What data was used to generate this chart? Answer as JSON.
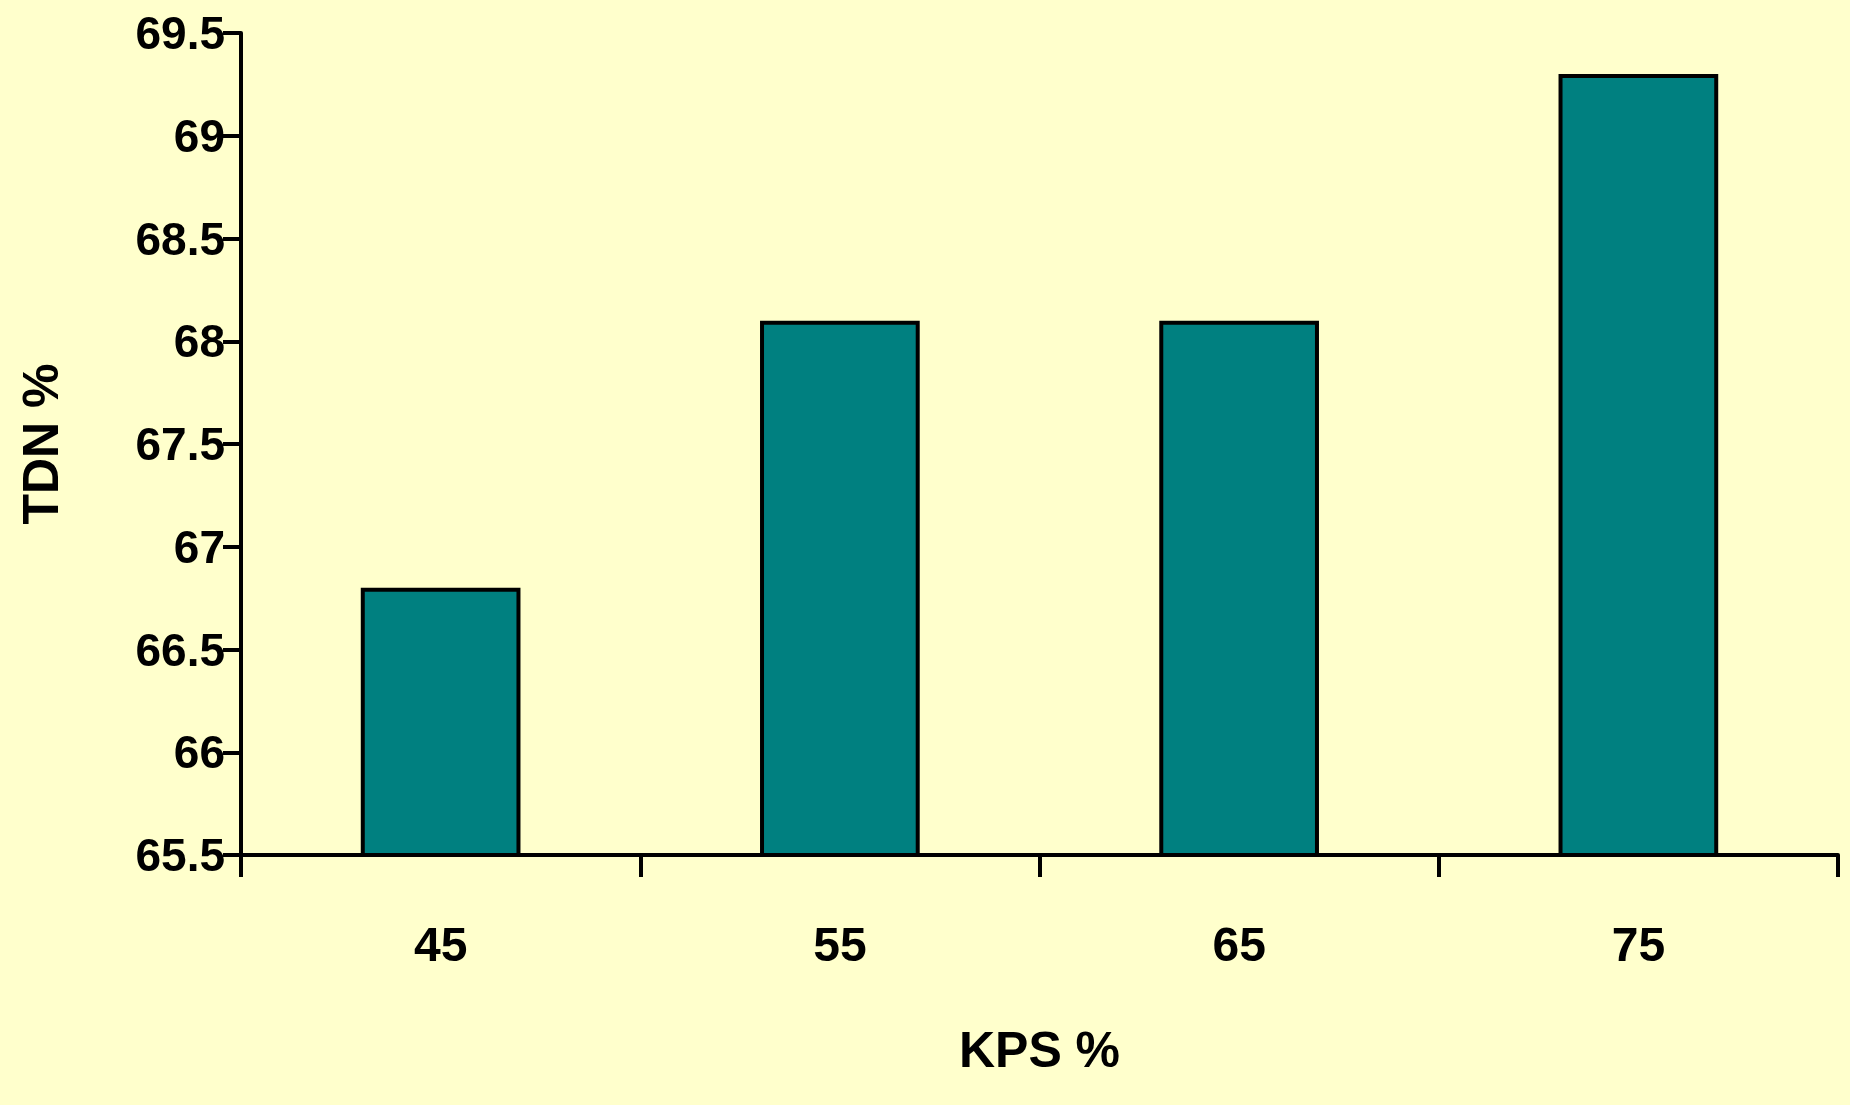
{
  "chart_data": {
    "type": "bar",
    "xlabel": "KPS %",
    "ylabel": "TDN %",
    "categories": [
      "45",
      "55",
      "65",
      "75"
    ],
    "values": [
      66.8,
      68.1,
      68.1,
      69.3
    ],
    "color": "#008080",
    "ylim": [
      65.5,
      69.5
    ],
    "yticks": [
      65.5,
      66,
      66.5,
      67,
      67.5,
      68,
      68.5,
      69,
      69.5
    ],
    "grid": false
  }
}
